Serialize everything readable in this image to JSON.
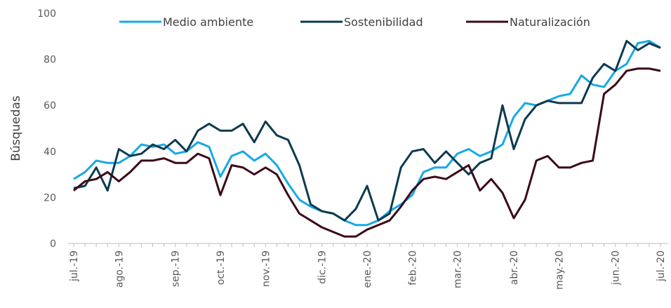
{
  "chart_data": {
    "type": "line",
    "y_label": "Búsquedas",
    "categories": [
      "jul.-19",
      null,
      null,
      null,
      "ago.-19",
      null,
      null,
      null,
      null,
      "sep.-19",
      null,
      null,
      null,
      "oct.-19",
      null,
      null,
      null,
      "nov.-19",
      null,
      null,
      null,
      null,
      "dic.-19",
      null,
      null,
      null,
      "ene.-20",
      null,
      null,
      null,
      "feb.-20",
      null,
      null,
      null,
      "mar.-20",
      null,
      null,
      null,
      null,
      "abr.-20",
      null,
      null,
      null,
      "may.-20",
      null,
      null,
      null,
      null,
      "jun.-20",
      null,
      null,
      null,
      "jul.-20"
    ],
    "series": [
      {
        "name": "Medio ambiente",
        "color": "#17a9e6",
        "values": [
          28,
          31,
          36,
          35,
          35,
          38,
          43,
          42,
          43,
          39,
          40,
          44,
          42,
          29,
          38,
          40,
          36,
          39,
          34,
          26,
          19,
          16,
          14,
          13,
          10,
          8,
          8,
          10,
          14,
          17,
          21,
          31,
          33,
          33,
          39,
          41,
          38,
          40,
          43,
          55,
          61,
          60,
          62,
          64,
          65,
          73,
          69,
          68,
          75,
          78,
          87,
          88,
          85
        ]
      },
      {
        "name": "Sostenibilidad",
        "color": "#0d3a4f",
        "values": [
          24,
          25,
          33,
          23,
          41,
          38,
          39,
          43,
          41,
          45,
          40,
          49,
          52,
          49,
          49,
          52,
          44,
          53,
          47,
          45,
          34,
          17,
          14,
          13,
          10,
          15,
          25,
          10,
          13,
          33,
          40,
          41,
          35,
          40,
          35,
          30,
          35,
          37,
          60,
          41,
          54,
          60,
          62,
          61,
          61,
          61,
          72,
          78,
          75,
          88,
          84,
          87,
          85
        ]
      },
      {
        "name": "Naturalización",
        "color": "#3b0a17",
        "values": [
          23,
          27,
          28,
          31,
          27,
          31,
          36,
          36,
          37,
          35,
          35,
          39,
          37,
          21,
          34,
          33,
          30,
          33,
          30,
          21,
          13,
          10,
          7,
          5,
          3,
          3,
          6,
          8,
          10,
          16,
          23,
          28,
          29,
          28,
          31,
          34,
          23,
          28,
          22,
          11,
          19,
          36,
          38,
          33,
          33,
          35,
          36,
          65,
          69,
          75,
          76,
          76,
          75
        ]
      }
    ],
    "ylim": [
      0,
      100
    ],
    "yticks": [
      0,
      20,
      40,
      60,
      80,
      100
    ],
    "legend": "top"
  }
}
